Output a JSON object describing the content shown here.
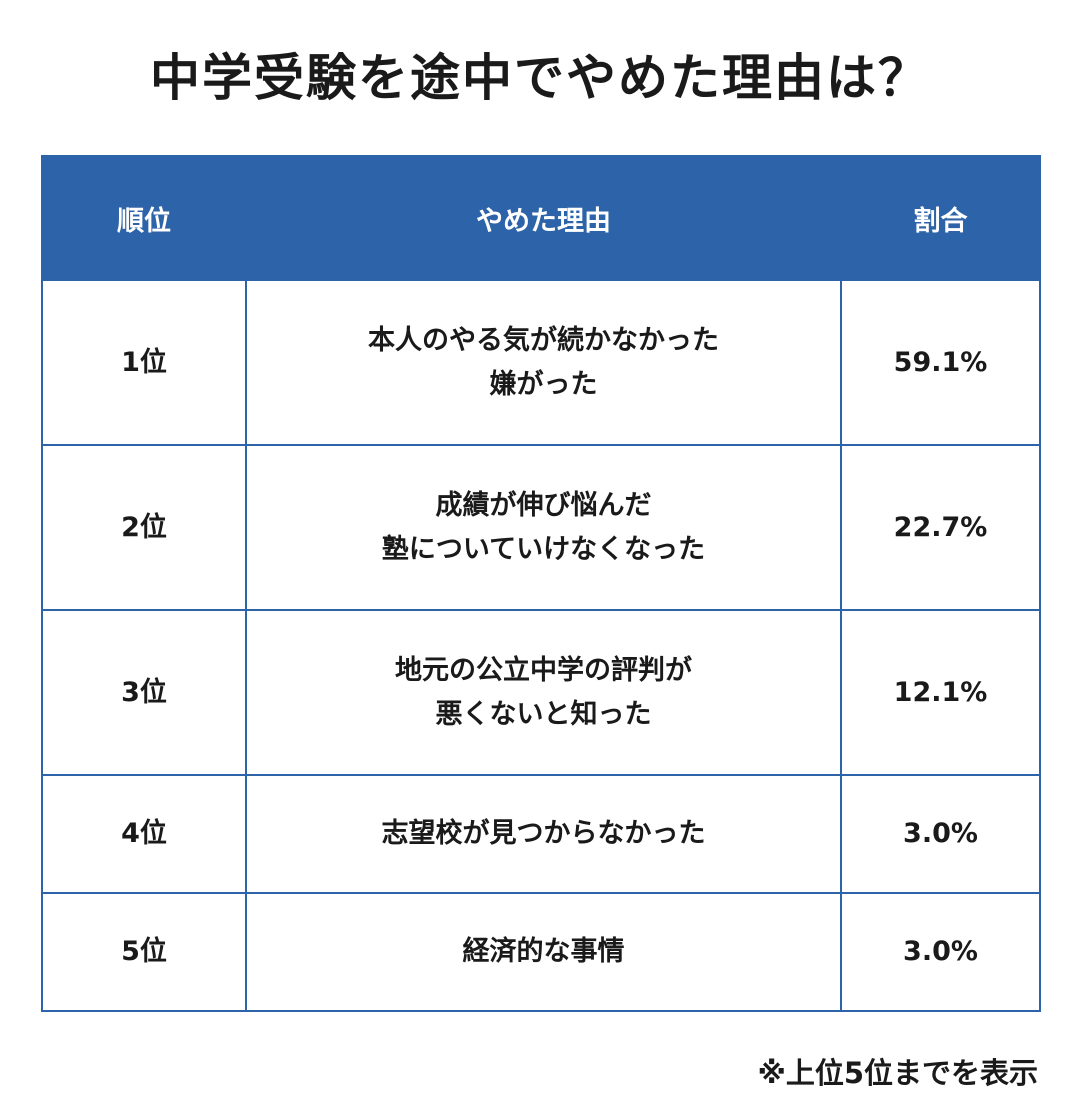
{
  "title": "中学受験を途中でやめた理由は？",
  "table": {
    "headers": [
      "順位",
      "やめた理由",
      "割合"
    ],
    "rows": [
      {
        "rank": "1位",
        "reason": [
          "本人のやる気が続かなかった",
          "嫌がった"
        ],
        "share": "59.1%"
      },
      {
        "rank": "2位",
        "reason": [
          "成績が伸び悩んだ",
          "塾についていけなくなった"
        ],
        "share": "22.7%"
      },
      {
        "rank": "3位",
        "reason": [
          "地元の公立中学の評判が",
          "悪くないと知った"
        ],
        "share": "12.1%"
      },
      {
        "rank": "4位",
        "reason": [
          "志望校が見つからなかった"
        ],
        "share": "3.0%"
      },
      {
        "rank": "5位",
        "reason": [
          "経済的な事情"
        ],
        "share": "3.0%"
      }
    ]
  },
  "footnote": "※上位5位までを表示",
  "colors": {
    "header_bg": "#2d63a8",
    "border": "#2d63a8"
  }
}
